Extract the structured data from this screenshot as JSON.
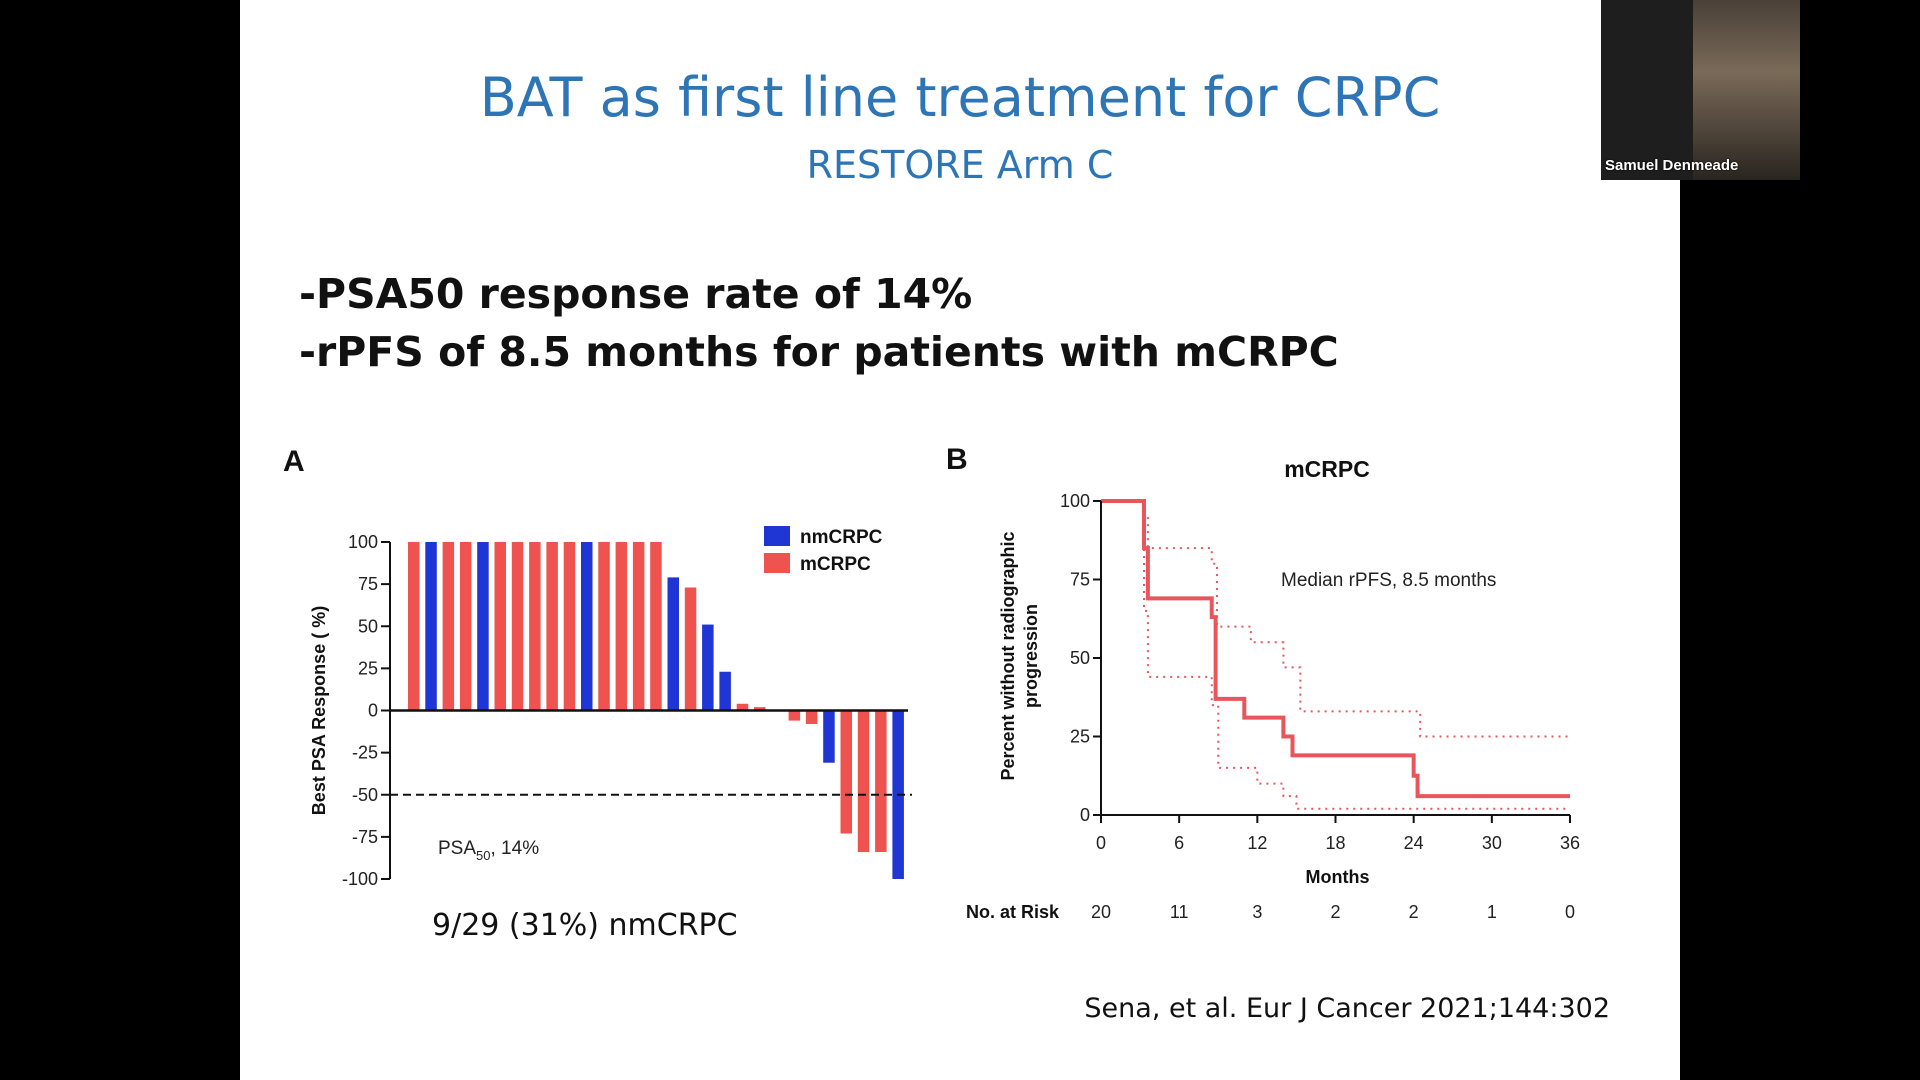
{
  "slide": {
    "title": "BAT as first line treatment for CRPC",
    "subtitle": "RESTORE Arm C",
    "bullets": [
      "-PSA50 response rate of 14%",
      "-rPFS of 8.5 months for patients with mCRPC"
    ],
    "citation": "Sena, et al. Eur J Cancer 2021;144:302"
  },
  "webcam": {
    "participant_name": "Samuel Denmeade"
  },
  "colors": {
    "title": "#2e75b6",
    "nmCRPC": "#1f35d4",
    "mCRPC": "#ef5350",
    "km_line": "#e8555a"
  },
  "chart_data": [
    {
      "panel": "A",
      "type": "bar",
      "ylabel": "Best PSA Response ( %)",
      "ylim": [
        -100,
        100
      ],
      "yticks": [
        100,
        75,
        50,
        25,
        0,
        -25,
        -50,
        -75,
        -100
      ],
      "ytick_labels": [
        "100",
        "75",
        "50",
        "25",
        "0",
        "-25",
        "-50",
        "-75",
        "-100"
      ],
      "legend": [
        {
          "name": "nmCRPC",
          "color": "#1f35d4"
        },
        {
          "name": "mCRPC",
          "color": "#ef5350"
        }
      ],
      "legend_position": "top-right",
      "threshold_line": -50,
      "annotation_prefix": "PSA",
      "annotation_subscript": "50",
      "annotation_suffix": ", 14%",
      "caption": "9/29 (31%) nmCRPC",
      "bars": [
        {
          "group": "mCRPC",
          "value": 100
        },
        {
          "group": "nmCRPC",
          "value": 100
        },
        {
          "group": "mCRPC",
          "value": 100
        },
        {
          "group": "mCRPC",
          "value": 100
        },
        {
          "group": "nmCRPC",
          "value": 100
        },
        {
          "group": "mCRPC",
          "value": 100
        },
        {
          "group": "mCRPC",
          "value": 100
        },
        {
          "group": "mCRPC",
          "value": 100
        },
        {
          "group": "mCRPC",
          "value": 100
        },
        {
          "group": "mCRPC",
          "value": 100
        },
        {
          "group": "nmCRPC",
          "value": 100
        },
        {
          "group": "mCRPC",
          "value": 100
        },
        {
          "group": "mCRPC",
          "value": 100
        },
        {
          "group": "mCRPC",
          "value": 100
        },
        {
          "group": "mCRPC",
          "value": 100
        },
        {
          "group": "nmCRPC",
          "value": 79
        },
        {
          "group": "mCRPC",
          "value": 73
        },
        {
          "group": "nmCRPC",
          "value": 51
        },
        {
          "group": "nmCRPC",
          "value": 23
        },
        {
          "group": "mCRPC",
          "value": 4
        },
        {
          "group": "mCRPC",
          "value": 2
        },
        {
          "group": "mCRPC",
          "value": 0
        },
        {
          "group": "mCRPC",
          "value": -6
        },
        {
          "group": "mCRPC",
          "value": -8
        },
        {
          "group": "nmCRPC",
          "value": -31
        },
        {
          "group": "mCRPC",
          "value": -73
        },
        {
          "group": "mCRPC",
          "value": -84
        },
        {
          "group": "mCRPC",
          "value": -84
        },
        {
          "group": "nmCRPC",
          "value": -100
        }
      ]
    },
    {
      "panel": "B",
      "type": "line",
      "title": "mCRPC",
      "xlabel": "Months",
      "ylabel_line1": "Percent without radiographic",
      "ylabel_line2": "progression",
      "xlim": [
        0,
        36
      ],
      "ylim": [
        0,
        100
      ],
      "xticks": [
        0,
        6,
        12,
        18,
        24,
        30,
        36
      ],
      "xtick_labels": [
        "0",
        "6",
        "12",
        "18",
        "24",
        "30",
        "36"
      ],
      "yticks": [
        0,
        25,
        50,
        75,
        100
      ],
      "ytick_labels": [
        "0",
        "25",
        "50",
        "75",
        "100"
      ],
      "annotation": "Median rPFS, 8.5 months",
      "series": [
        {
          "name": "rPFS",
          "style": "solid",
          "x": [
            0,
            3,
            3.3,
            3.6,
            7,
            8.5,
            8.8,
            10.2,
            11,
            14,
            14.7,
            24,
            24.3,
            36
          ],
          "y": [
            100,
            100,
            85,
            69,
            69,
            63,
            37,
            37,
            31,
            25,
            19,
            12.5,
            6,
            6
          ]
        },
        {
          "name": "Upper 95% CI",
          "style": "dotted",
          "x": [
            0,
            3,
            3.3,
            3.6,
            7,
            8.5,
            8.9,
            10.6,
            11.5,
            14,
            15.3,
            24,
            24.5,
            36
          ],
          "y": [
            100,
            100,
            95,
            85,
            85,
            80,
            60,
            60,
            55,
            47,
            33,
            33,
            25,
            25
          ]
        },
        {
          "name": "Lower 95% CI",
          "style": "dotted",
          "x": [
            0,
            3,
            3.3,
            3.6,
            6.8,
            8.5,
            9,
            10.5,
            12,
            14,
            15,
            24,
            36
          ],
          "y": [
            100,
            100,
            65,
            44,
            44,
            35,
            15,
            15,
            10,
            6,
            2,
            2,
            2
          ]
        }
      ],
      "risk_table": {
        "label": "No. at Risk",
        "values": [
          "20",
          "11",
          "3",
          "2",
          "2",
          "1",
          "0"
        ]
      }
    }
  ]
}
